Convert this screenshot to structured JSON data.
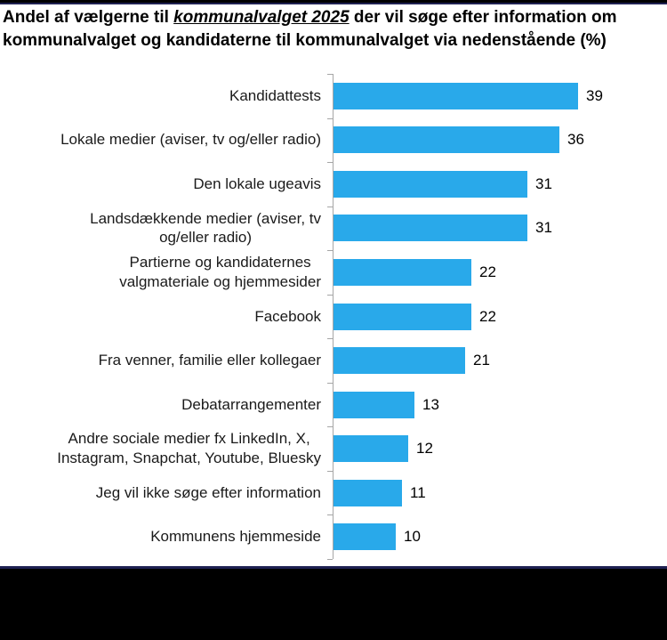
{
  "title": {
    "line1_prefix": "Andel af vælgerne til ",
    "line1_emphasis": "kommunalvalget 2025",
    "line1_suffix": " der vil søge efter information om",
    "line2": "kommunalvalget og kandidaterne til kommunalvalget via nedenstående (%)"
  },
  "colors": {
    "bar": "#29A9EA",
    "axis": "#A6A6A6",
    "accent_band": "#1F2152",
    "footer": "#000000"
  },
  "chart_data": {
    "type": "bar",
    "orientation": "horizontal",
    "title": "Andel af vælgerne til kommunalvalget 2025 der vil søge efter information om kommunalvalget og kandidaterne til kommunalvalget via nedenstående (%)",
    "categories": [
      "Kandidattests",
      "Lokale medier (aviser, tv og/eller radio)",
      "Den lokale ugeavis",
      "Landsdækkende medier (aviser, tv\nog/eller radio)",
      "Partierne og kandidaternes\nvalgmateriale og hjemmesider",
      "Facebook",
      "Fra venner, familie eller kollegaer",
      "Debatarrangementer",
      "Andre sociale medier fx LinkedIn, X,\nInstagram, Snapchat, Youtube, Bluesky",
      "Jeg vil ikke søge efter information",
      "Kommunens hjemmeside"
    ],
    "values": [
      39,
      36,
      31,
      31,
      22,
      22,
      21,
      13,
      12,
      11,
      10
    ],
    "value_labels_shown": true,
    "xlabel": "",
    "ylabel": "",
    "legend": "none",
    "grid": "off",
    "value_axis_labels": "hidden"
  }
}
